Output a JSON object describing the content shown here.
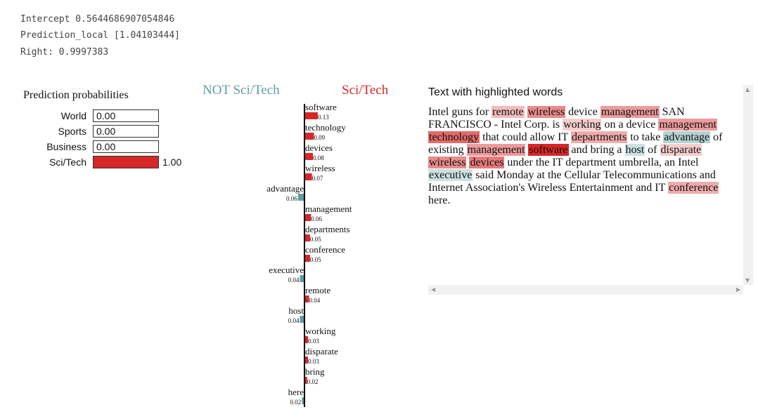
{
  "header_lines": {
    "intercept": "Intercept 0.5644686907054846",
    "prediction_local": "Prediction_local [1.04103444]",
    "right": "Right: 0.9997383"
  },
  "prediction_probabilities": {
    "title": "Prediction probabilities",
    "items": [
      {
        "label": "World",
        "value": 0.0,
        "value_label": "0.00"
      },
      {
        "label": "Sports",
        "value": 0.0,
        "value_label": "0.00"
      },
      {
        "label": "Business",
        "value": 0.0,
        "value_label": "0.00"
      },
      {
        "label": "Sci/Tech",
        "value": 1.0,
        "value_label": "1.00"
      }
    ],
    "bar_color": "#d62728"
  },
  "explanation_legend": {
    "negative": "NOT Sci/Tech",
    "positive": "Sci/Tech",
    "negative_color": "#5f9ea0",
    "positive_color": "#d62728"
  },
  "chart_data": {
    "type": "bar",
    "orientation": "horizontal",
    "categories": [
      "software",
      "technology",
      "devices",
      "wireless",
      "advantage",
      "management",
      "departments",
      "conference",
      "executive",
      "remote",
      "host",
      "working",
      "disparate",
      "bring",
      "here"
    ],
    "values": [
      0.13,
      0.09,
      0.08,
      0.07,
      -0.06,
      0.06,
      0.05,
      0.05,
      -0.04,
      0.04,
      -0.04,
      0.03,
      0.03,
      0.02,
      -0.02
    ],
    "value_labels": [
      "0.13",
      "0.09",
      "0.08",
      "0.07",
      "0.06",
      "0.06",
      "0.05",
      "0.05",
      "0.04",
      "0.04",
      "0.04",
      "0.03",
      "0.03",
      "0.02",
      "0.02"
    ],
    "series": [
      {
        "name": "NOT Sci/Tech",
        "color": "#5f9ea0"
      },
      {
        "name": "Sci/Tech",
        "color": "#d62728"
      }
    ]
  },
  "text_panel": {
    "title": "Text with highlighted words",
    "tokens": [
      {
        "t": "Intel guns for "
      },
      {
        "t": "remote",
        "w": 0.04
      },
      {
        "t": " "
      },
      {
        "t": "wireless",
        "w": 0.07
      },
      {
        "t": " device "
      },
      {
        "t": "management",
        "w": 0.06
      },
      {
        "t": " SAN FRANCISCO - Intel Corp. is "
      },
      {
        "t": "working",
        "w": 0.03
      },
      {
        "t": " on a device "
      },
      {
        "t": "management",
        "w": 0.06
      },
      {
        "t": " "
      },
      {
        "t": "technology",
        "w": 0.09
      },
      {
        "t": " that could allow IT "
      },
      {
        "t": "departments",
        "w": 0.05
      },
      {
        "t": " to take "
      },
      {
        "t": "advantage",
        "w": -0.06
      },
      {
        "t": " of existing "
      },
      {
        "t": "management",
        "w": 0.06
      },
      {
        "t": " "
      },
      {
        "t": "software",
        "w": 0.13
      },
      {
        "t": " and bring a "
      },
      {
        "t": "host",
        "w": -0.04
      },
      {
        "t": " of "
      },
      {
        "t": "disparate",
        "w": 0.03
      },
      {
        "t": " "
      },
      {
        "t": "wireless",
        "w": 0.07
      },
      {
        "t": " "
      },
      {
        "t": "devices",
        "w": 0.08
      },
      {
        "t": " under the IT department umbrella, an Intel "
      },
      {
        "t": "executive",
        "w": -0.04
      },
      {
        "t": " said Monday at the Cellular Telecommunications and Internet Association's Wireless Entertainment and IT "
      },
      {
        "t": "conference",
        "w": 0.05
      },
      {
        "t": " here."
      }
    ]
  }
}
